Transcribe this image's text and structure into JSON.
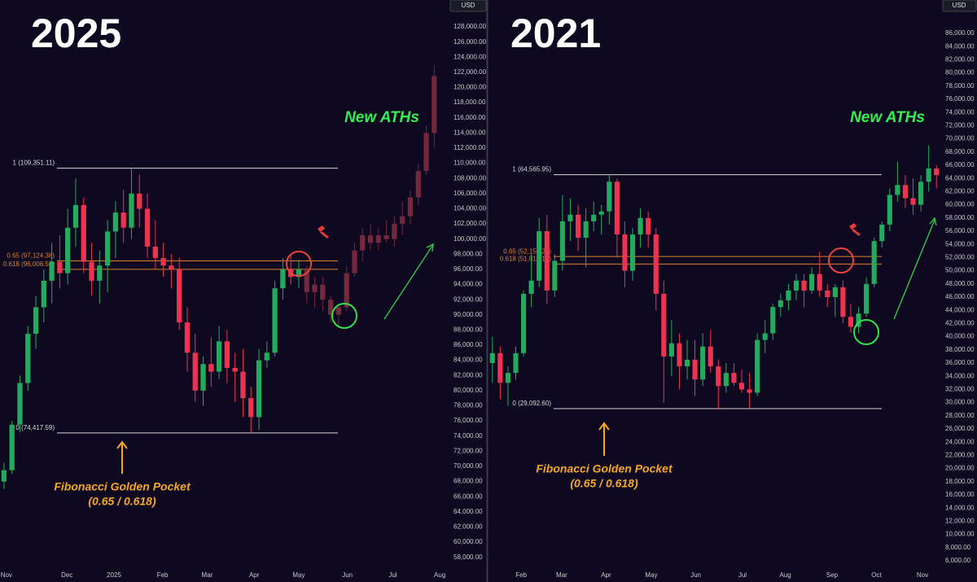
{
  "chart_data": [
    {
      "type": "candlestick",
      "title": "2025",
      "currency": "USD",
      "xlim": [
        -0.5,
        55.5
      ],
      "xticks": [
        {
          "value": 0.3,
          "label": "Nov"
        },
        {
          "value": 7.9,
          "label": "Dec"
        },
        {
          "value": 13.8,
          "label": "2025"
        },
        {
          "value": 19.9,
          "label": "Feb"
        },
        {
          "value": 25.5,
          "label": "Mar"
        },
        {
          "value": 31.4,
          "label": "Apr"
        },
        {
          "value": 37,
          "label": "May"
        },
        {
          "value": 43.1,
          "label": "Jun"
        },
        {
          "value": 48.8,
          "label": "Jul"
        },
        {
          "value": 54.7,
          "label": "Aug"
        }
      ],
      "ylim": [
        56350,
        131550
      ],
      "yticks": [
        {
          "value": 58000,
          "label": "58,000.00"
        },
        {
          "value": 60000,
          "label": "60,000.00"
        },
        {
          "value": 62000,
          "label": "62,000.00"
        },
        {
          "value": 64000,
          "label": "64,000.00"
        },
        {
          "value": 66000,
          "label": "66,000.00"
        },
        {
          "value": 68000,
          "label": "68,000.00"
        },
        {
          "value": 70000,
          "label": "70,000.00"
        },
        {
          "value": 72000,
          "label": "72,000.00"
        },
        {
          "value": 74000,
          "label": "74,000.00"
        },
        {
          "value": 76000,
          "label": "76,000.00"
        },
        {
          "value": 78000,
          "label": "78,000.00"
        },
        {
          "value": 80000,
          "label": "80,000.00"
        },
        {
          "value": 82000,
          "label": "82,000.00"
        },
        {
          "value": 84000,
          "label": "84,000.00"
        },
        {
          "value": 86000,
          "label": "86,000.00"
        },
        {
          "value": 88000,
          "label": "88,000.00"
        },
        {
          "value": 90000,
          "label": "90,000.00"
        },
        {
          "value": 92000,
          "label": "92,000.00"
        },
        {
          "value": 94000,
          "label": "94,000.00"
        },
        {
          "value": 96000,
          "label": "96,000.00"
        },
        {
          "value": 98000,
          "label": "98,000.00"
        },
        {
          "value": 100000,
          "label": "100,000.00"
        },
        {
          "value": 102000,
          "label": "102,000.00"
        },
        {
          "value": 104000,
          "label": "104,000.00"
        },
        {
          "value": 106000,
          "label": "106,000.00"
        },
        {
          "value": 108000,
          "label": "108,000.00"
        },
        {
          "value": 110000,
          "label": "110,000.00"
        },
        {
          "value": 112000,
          "label": "112,000.00"
        },
        {
          "value": 114000,
          "label": "114,000.00"
        },
        {
          "value": 116000,
          "label": "116,000.00"
        },
        {
          "value": 118000,
          "label": "118,000.00"
        },
        {
          "value": 120000,
          "label": "120,000.00"
        },
        {
          "value": 122000,
          "label": "122,000.00"
        },
        {
          "value": 124000,
          "label": "124,000.00"
        },
        {
          "value": 126000,
          "label": "126,000.00"
        },
        {
          "value": 128000,
          "label": "128,000.00"
        }
      ],
      "up_color": "#22ab5c",
      "down_color": "#ee3350",
      "x": [
        0,
        1,
        2,
        3,
        4,
        5,
        6,
        7,
        8,
        9,
        10,
        11,
        12,
        13,
        14,
        15,
        16,
        17,
        18,
        19,
        20,
        21,
        22,
        23,
        24,
        25,
        26,
        27,
        28,
        29,
        30,
        31,
        32,
        33,
        34,
        35,
        36,
        37
      ],
      "open": [
        68000,
        69500,
        75500,
        81000,
        87500,
        91000,
        94500,
        97000,
        95500,
        101500,
        104500,
        97000,
        94500,
        96500,
        101000,
        103500,
        101500,
        106000,
        104000,
        99000,
        97500,
        96500,
        96000,
        89000,
        85000,
        80000,
        83500,
        82500,
        86500,
        83000,
        82500,
        79000,
        76500,
        84000,
        85000,
        93500,
        96000,
        95000
      ],
      "high": [
        70500,
        76000,
        82000,
        88500,
        92500,
        96000,
        99500,
        100500,
        104000,
        108000,
        105500,
        99500,
        98500,
        102500,
        105000,
        106500,
        109350,
        108500,
        106000,
        102500,
        99500,
        98000,
        97500,
        91000,
        87500,
        84500,
        87000,
        88500,
        88000,
        85000,
        85500,
        80500,
        85500,
        86500,
        94500,
        97500,
        97800,
        97300
      ],
      "low": [
        67000,
        69000,
        74500,
        80000,
        85500,
        89000,
        91500,
        93500,
        94000,
        99000,
        95500,
        92500,
        91500,
        93000,
        97500,
        99500,
        100000,
        101500,
        97500,
        96000,
        95000,
        93500,
        88000,
        82500,
        78500,
        78000,
        80500,
        81500,
        81000,
        78500,
        76500,
        74420,
        74800,
        83000,
        84500,
        92000,
        94000,
        93500
      ],
      "close": [
        69500,
        75500,
        81000,
        87500,
        91000,
        94500,
        97000,
        95500,
        101500,
        104500,
        97000,
        94500,
        96500,
        101000,
        103500,
        101500,
        106000,
        104000,
        99000,
        97500,
        96500,
        96000,
        89000,
        85000,
        80000,
        83500,
        82500,
        86500,
        83000,
        82500,
        79000,
        76500,
        84000,
        85000,
        93500,
        96000,
        95000,
        96000
      ],
      "projection": {
        "color": "#74283c",
        "x": [
          38,
          39,
          40,
          41,
          42,
          43,
          44,
          45,
          46,
          47,
          48,
          49,
          50,
          51,
          52,
          53,
          54
        ],
        "open": [
          96000,
          93000,
          94000,
          92000,
          90000,
          91000,
          95500,
          98500,
          100500,
          99500,
          100500,
          100000,
          102000,
          103000,
          105500,
          109000,
          114000
        ],
        "high": [
          96500,
          95000,
          95000,
          92500,
          91500,
          96500,
          99500,
          101500,
          102000,
          101500,
          102500,
          103000,
          105000,
          106500,
          110000,
          115000,
          123000
        ],
        "low": [
          91500,
          91000,
          90500,
          89000,
          88500,
          90500,
          95000,
          97000,
          98500,
          98500,
          99500,
          99000,
          100500,
          102000,
          104500,
          108500,
          112000
        ],
        "close": [
          93000,
          94000,
          92000,
          90000,
          91000,
          95500,
          98500,
          100500,
          99500,
          100500,
          100000,
          102000,
          103000,
          105500,
          109000,
          114000,
          121500
        ]
      },
      "fib_levels": [
        {
          "value": 109351.11,
          "label": "1 (109,351.11)",
          "color": "#d8d8d8"
        },
        {
          "value": 97124.38,
          "label": "0.65 (97,124.38)",
          "color": "#d9822b"
        },
        {
          "value": 96006.5,
          "label": "0.618 (96,006.50)",
          "color": "#d9822b"
        },
        {
          "value": 74417.59,
          "label": "0 (74,417.59)",
          "color": "#d8d8d8"
        }
      ],
      "annotations": [
        "New ATHs",
        "Fibonacci Golden Pocket",
        "(0.65 / 0.618)"
      ]
    },
    {
      "type": "candlestick",
      "title": "2021",
      "currency": "USD",
      "xlim": [
        -0.5,
        57.5
      ],
      "xticks": [
        {
          "value": 3.7,
          "label": "Feb"
        },
        {
          "value": 8.9,
          "label": "Mar"
        },
        {
          "value": 14.6,
          "label": "Apr"
        },
        {
          "value": 20.4,
          "label": "May"
        },
        {
          "value": 26.1,
          "label": "Jun"
        },
        {
          "value": 32.1,
          "label": "Jul"
        },
        {
          "value": 37.6,
          "label": "Aug"
        },
        {
          "value": 43.6,
          "label": "Sep"
        },
        {
          "value": 49.3,
          "label": "Oct"
        },
        {
          "value": 55.2,
          "label": "Nov"
        }
      ],
      "ylim": [
        4642,
        91062
      ],
      "yticks": [
        {
          "value": 6000,
          "label": "6,000.00"
        },
        {
          "value": 8000,
          "label": "8,000.00"
        },
        {
          "value": 10000,
          "label": "10,000.00"
        },
        {
          "value": 12000,
          "label": "12,000.00"
        },
        {
          "value": 14000,
          "label": "14,000.00"
        },
        {
          "value": 16000,
          "label": "16,000.00"
        },
        {
          "value": 18000,
          "label": "18,000.00"
        },
        {
          "value": 20000,
          "label": "20,000.00"
        },
        {
          "value": 22000,
          "label": "22,000.00"
        },
        {
          "value": 24000,
          "label": "24,000.00"
        },
        {
          "value": 26000,
          "label": "26,000.00"
        },
        {
          "value": 28000,
          "label": "28,000.00"
        },
        {
          "value": 30000,
          "label": "30,000.00"
        },
        {
          "value": 32000,
          "label": "32,000.00"
        },
        {
          "value": 34000,
          "label": "34,000.00"
        },
        {
          "value": 36000,
          "label": "36,000.00"
        },
        {
          "value": 38000,
          "label": "38,000.00"
        },
        {
          "value": 40000,
          "label": "40,000.00"
        },
        {
          "value": 42000,
          "label": "42,000.00"
        },
        {
          "value": 44000,
          "label": "44,000.00"
        },
        {
          "value": 46000,
          "label": "46,000.00"
        },
        {
          "value": 48000,
          "label": "48,000.00"
        },
        {
          "value": 50000,
          "label": "50,000.00"
        },
        {
          "value": 52000,
          "label": "52,000.00"
        },
        {
          "value": 54000,
          "label": "54,000.00"
        },
        {
          "value": 56000,
          "label": "56,000.00"
        },
        {
          "value": 58000,
          "label": "58,000.00"
        },
        {
          "value": 60000,
          "label": "60,000.00"
        },
        {
          "value": 62000,
          "label": "62,000.00"
        },
        {
          "value": 64000,
          "label": "64,000.00"
        },
        {
          "value": 66000,
          "label": "66,000.00"
        },
        {
          "value": 68000,
          "label": "68,000.00"
        },
        {
          "value": 70000,
          "label": "70,000.00"
        },
        {
          "value": 72000,
          "label": "72,000.00"
        },
        {
          "value": 74000,
          "label": "74,000.00"
        },
        {
          "value": 76000,
          "label": "76,000.00"
        },
        {
          "value": 78000,
          "label": "78,000.00"
        },
        {
          "value": 80000,
          "label": "80,000.00"
        },
        {
          "value": 82000,
          "label": "82,000.00"
        },
        {
          "value": 84000,
          "label": "84,000.00"
        },
        {
          "value": 86000,
          "label": "86,000.00"
        }
      ],
      "up_color": "#22ab5c",
      "down_color": "#ee3350",
      "x": [
        0,
        1,
        2,
        3,
        4,
        5,
        6,
        7,
        8,
        9,
        10,
        11,
        12,
        13,
        14,
        15,
        16,
        17,
        18,
        19,
        20,
        21,
        22,
        23,
        24,
        25,
        26,
        27,
        28,
        29,
        30,
        31,
        32,
        33,
        34,
        35,
        36,
        37,
        38,
        39,
        40,
        41,
        42,
        43,
        44,
        45,
        46,
        47,
        48,
        49,
        50,
        51,
        52,
        53,
        54,
        55,
        56,
        57
      ],
      "open": [
        36000,
        37500,
        33000,
        34500,
        37500,
        46500,
        48500,
        56000,
        47000,
        51500,
        57500,
        58500,
        55000,
        57500,
        58500,
        59000,
        63500,
        55500,
        50000,
        55500,
        58000,
        55500,
        46500,
        37000,
        39000,
        35500,
        36500,
        33500,
        38500,
        35500,
        32500,
        34500,
        33000,
        32000,
        31500,
        39500,
        40500,
        44500,
        45500,
        47000,
        48500,
        47000,
        49500,
        47000,
        46000,
        47500,
        43000,
        41500,
        43500,
        48000,
        54500,
        57000,
        61500,
        63000,
        61000,
        60000,
        63500,
        65500
      ],
      "high": [
        40000,
        38500,
        35500,
        38500,
        47000,
        52500,
        58000,
        58500,
        52500,
        61500,
        61000,
        60000,
        59500,
        60500,
        60000,
        64565,
        64000,
        57500,
        56500,
        59500,
        59000,
        56500,
        48500,
        42500,
        40500,
        39500,
        39500,
        40500,
        41000,
        36500,
        36000,
        36000,
        35000,
        34500,
        40500,
        42500,
        45000,
        46500,
        48000,
        49500,
        49500,
        50500,
        52900,
        48000,
        48000,
        48500,
        45000,
        44500,
        49000,
        55000,
        57500,
        62500,
        66500,
        64500,
        64000,
        64500,
        69000,
        66000
      ],
      "low": [
        33000,
        30500,
        29500,
        33500,
        37000,
        44500,
        47500,
        45000,
        46000,
        50000,
        54500,
        53000,
        50500,
        56000,
        55500,
        57000,
        52000,
        47500,
        48500,
        53500,
        53500,
        44000,
        30000,
        34000,
        32000,
        33500,
        31000,
        32500,
        34500,
        29000,
        31500,
        32500,
        31500,
        29200,
        31000,
        37500,
        39500,
        43000,
        44000,
        45500,
        44500,
        46500,
        46000,
        44500,
        43000,
        42000,
        40600,
        40500,
        43000,
        47500,
        53500,
        56000,
        60500,
        59500,
        58500,
        59000,
        62000,
        62500
      ],
      "close": [
        37500,
        33000,
        34500,
        37500,
        46500,
        48500,
        56000,
        47000,
        51500,
        57500,
        58500,
        55000,
        57500,
        58500,
        59000,
        63500,
        55500,
        50000,
        55500,
        58000,
        55500,
        46500,
        37000,
        39000,
        35500,
        36500,
        33500,
        38500,
        35500,
        32500,
        34500,
        33000,
        32000,
        31500,
        39500,
        40500,
        44500,
        45500,
        47000,
        48500,
        47000,
        49500,
        47000,
        46000,
        47500,
        43000,
        41500,
        43500,
        48000,
        54500,
        57000,
        61500,
        63000,
        61000,
        60000,
        63500,
        65500,
        64500
      ],
      "fib_levels": [
        {
          "value": 64565.95,
          "label": "1 (64,565.95)",
          "color": "#d8d8d8"
        },
        {
          "value": 52150.28,
          "label": "0.65 (52,150.28)",
          "color": "#d9822b"
        },
        {
          "value": 51015.13,
          "label": "0.618 (51,015.13)",
          "color": "#d9822b"
        },
        {
          "value": 29092.6,
          "label": "0 (29,092.60)",
          "color": "#d8d8d8"
        }
      ],
      "annotations": [
        "New ATHs",
        "Fibonacci Golden Pocket",
        "(0.65 / 0.618)"
      ]
    }
  ]
}
